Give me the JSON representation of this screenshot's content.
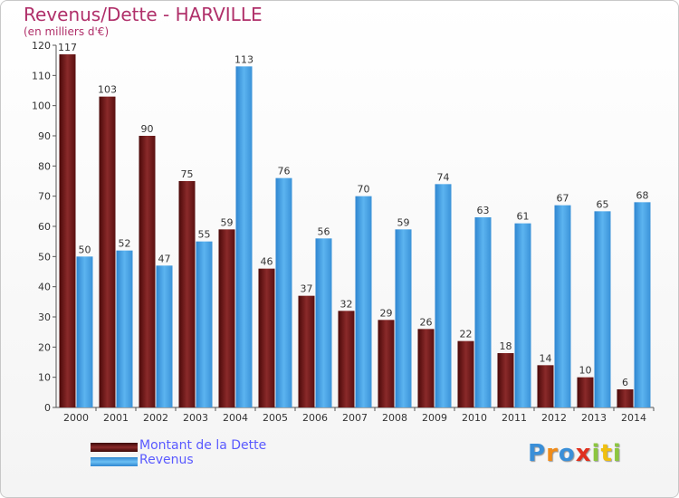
{
  "chart_data": {
    "type": "bar",
    "title": "Revenus/Dette - HARVILLE",
    "subtitle": "(en milliers d'€)",
    "categories": [
      "2000",
      "2001",
      "2002",
      "2003",
      "2004",
      "2005",
      "2006",
      "2007",
      "2008",
      "2009",
      "2010",
      "2011",
      "2012",
      "2013",
      "2014"
    ],
    "series": [
      {
        "name": "Montant de la Dette",
        "color": "#7a1a1a",
        "values": [
          117,
          103,
          90,
          75,
          59,
          46,
          37,
          32,
          29,
          26,
          22,
          18,
          14,
          10,
          6
        ]
      },
      {
        "name": "Revenus",
        "color": "#4aa3e8",
        "values": [
          50,
          52,
          47,
          55,
          113,
          76,
          56,
          70,
          59,
          74,
          63,
          61,
          67,
          65,
          68
        ]
      }
    ],
    "ylim": [
      0,
      120
    ],
    "yticks": [
      0,
      10,
      20,
      30,
      40,
      50,
      60,
      70,
      80,
      90,
      100,
      110,
      120
    ],
    "grid": false,
    "legend_position": "bottom-left"
  },
  "logo": {
    "letters": [
      "P",
      "r",
      "o",
      "x",
      "i",
      "t",
      "i"
    ],
    "colors": [
      "#3a8fd8",
      "#f08c1a",
      "#3a8fd8",
      "#e0301e",
      "#8cc63f",
      "#f0c010",
      "#8cc63f"
    ]
  }
}
